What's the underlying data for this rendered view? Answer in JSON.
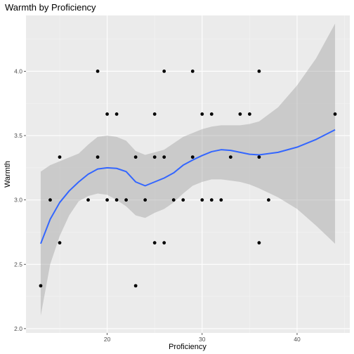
{
  "chart_data": {
    "type": "scatter",
    "title": "Warmth by Proficiency",
    "xlabel": "Proficiency",
    "ylabel": "Warmth",
    "xlim": [
      11.45,
      45.55
    ],
    "ylim": [
      1.9667,
      4.4333
    ],
    "x_ticks": [
      20,
      30,
      40
    ],
    "y_ticks": [
      2.0,
      2.5,
      3.0,
      3.5,
      4.0
    ],
    "y_tick_labels": [
      "2.0",
      "2.5",
      "3.0",
      "3.5",
      "4.0"
    ],
    "grid": true,
    "points": [
      {
        "x": 13,
        "y": 2.333
      },
      {
        "x": 14,
        "y": 3.0
      },
      {
        "x": 15,
        "y": 3.333
      },
      {
        "x": 15,
        "y": 2.667
      },
      {
        "x": 18,
        "y": 3.0
      },
      {
        "x": 19,
        "y": 4.0
      },
      {
        "x": 19,
        "y": 3.333
      },
      {
        "x": 20,
        "y": 3.667
      },
      {
        "x": 20,
        "y": 3.0
      },
      {
        "x": 21,
        "y": 3.667
      },
      {
        "x": 21,
        "y": 3.0
      },
      {
        "x": 22,
        "y": 3.0
      },
      {
        "x": 23,
        "y": 3.333
      },
      {
        "x": 23,
        "y": 2.333
      },
      {
        "x": 24,
        "y": 3.0
      },
      {
        "x": 25,
        "y": 3.667
      },
      {
        "x": 25,
        "y": 3.333
      },
      {
        "x": 25,
        "y": 2.667
      },
      {
        "x": 26,
        "y": 4.0
      },
      {
        "x": 26,
        "y": 3.333
      },
      {
        "x": 26,
        "y": 2.667
      },
      {
        "x": 27,
        "y": 3.0
      },
      {
        "x": 28,
        "y": 3.0
      },
      {
        "x": 29,
        "y": 4.0
      },
      {
        "x": 29,
        "y": 3.333
      },
      {
        "x": 30,
        "y": 3.667
      },
      {
        "x": 30,
        "y": 3.0
      },
      {
        "x": 31,
        "y": 3.667
      },
      {
        "x": 31,
        "y": 3.0
      },
      {
        "x": 32,
        "y": 3.0
      },
      {
        "x": 33,
        "y": 3.333
      },
      {
        "x": 34,
        "y": 3.667
      },
      {
        "x": 35,
        "y": 3.667
      },
      {
        "x": 36,
        "y": 4.0
      },
      {
        "x": 36,
        "y": 3.333
      },
      {
        "x": 36,
        "y": 2.667
      },
      {
        "x": 37,
        "y": 3.0
      },
      {
        "x": 44,
        "y": 3.667
      }
    ],
    "smooth": {
      "method": "loess",
      "color": "#3366ff",
      "band_color": "#999999",
      "x": [
        13,
        14,
        15,
        16,
        17,
        18,
        19,
        20,
        21,
        22,
        23,
        24,
        25,
        26,
        27,
        28,
        29,
        30,
        31,
        32,
        33,
        34,
        35,
        36,
        38,
        40,
        42,
        44
      ],
      "y": [
        2.66,
        2.85,
        2.98,
        3.07,
        3.14,
        3.2,
        3.24,
        3.25,
        3.245,
        3.22,
        3.14,
        3.11,
        3.14,
        3.17,
        3.21,
        3.27,
        3.31,
        3.345,
        3.375,
        3.39,
        3.385,
        3.37,
        3.355,
        3.35,
        3.37,
        3.41,
        3.47,
        3.545
      ],
      "lower": [
        2.1,
        2.5,
        2.72,
        2.88,
        2.99,
        3.03,
        3.05,
        3.04,
        3.0,
        2.95,
        2.88,
        2.86,
        2.9,
        2.93,
        2.98,
        3.05,
        3.11,
        3.14,
        3.16,
        3.16,
        3.15,
        3.14,
        3.12,
        3.09,
        3.02,
        2.93,
        2.8,
        2.66
      ],
      "upper": [
        3.22,
        3.27,
        3.3,
        3.33,
        3.36,
        3.43,
        3.49,
        3.5,
        3.49,
        3.46,
        3.38,
        3.35,
        3.37,
        3.39,
        3.44,
        3.49,
        3.52,
        3.55,
        3.57,
        3.58,
        3.58,
        3.58,
        3.59,
        3.61,
        3.72,
        3.89,
        4.1,
        4.37
      ]
    },
    "colors": {
      "panel": "#ebebeb",
      "grid_major": "#ffffff",
      "grid_minor": "#f3f3f3",
      "point": "#000000"
    }
  }
}
